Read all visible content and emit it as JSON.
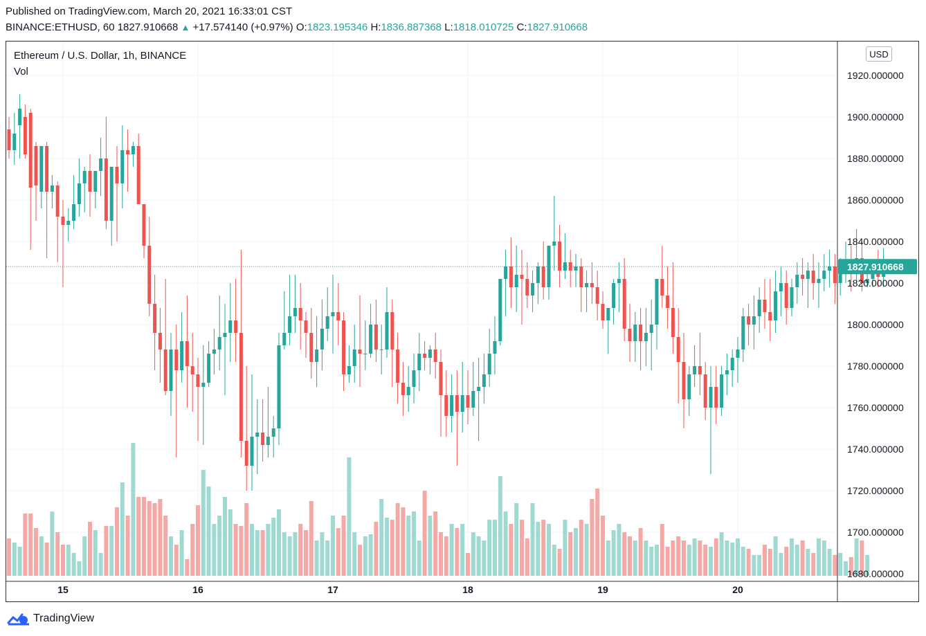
{
  "header": {
    "published": "Published on TradingView.com, March 20, 2021 16:33:01 CST",
    "symbol": "BINANCE:ETHUSD, 60",
    "last": "1827.910668",
    "change": "+17.574140 (+0.97%)",
    "o_label": "O:",
    "o_value": "1823.195346",
    "h_label": "H:",
    "h_value": "1836.887368",
    "l_label": "L:",
    "l_value": "1818.010725",
    "c_label": "C:",
    "c_value": "1827.910668"
  },
  "legend": {
    "title": "Ethereum / U.S. Dollar, 1h, BINANCE",
    "indicator": "Vol"
  },
  "unit_badge": "USD",
  "footer": {
    "brand": "TradingView"
  },
  "colors": {
    "up": "#26a69a",
    "down": "#ef5350",
    "up_vol": "#9fd9d1",
    "down_vol": "#f5a9a7",
    "price_tag": "#26a69a"
  },
  "chart_data": {
    "type": "candlestick",
    "timeframe": "1h",
    "y_axis_ticks": [
      "1920.000000",
      "1900.000000",
      "1880.000000",
      "1860.000000",
      "1840.000000",
      "1820.000000",
      "1800.000000",
      "1780.000000",
      "1760.000000",
      "1740.000000",
      "1720.000000",
      "1700.000000",
      "1680.000000"
    ],
    "y_axis_values": [
      1920,
      1900,
      1880,
      1860,
      1840,
      1820,
      1800,
      1780,
      1760,
      1740,
      1720,
      1700,
      1680
    ],
    "ylim": [
      1676,
      1930
    ],
    "x_ticks": [
      "15",
      "16",
      "17",
      "18",
      "19",
      "20"
    ],
    "x_tick_candle_index": [
      10,
      35,
      60,
      85,
      110,
      135
    ],
    "current_price": 1827.910668,
    "current_price_label": "1827.910668",
    "volume_base": 1679,
    "candles": [
      [
        1894,
        1900,
        1884,
        1880
      ],
      [
        1884,
        1902,
        1892,
        1877
      ],
      [
        1896,
        1911,
        1904,
        1880
      ],
      [
        1900,
        1906,
        1882,
        1880
      ],
      [
        1902,
        1904,
        1866,
        1836
      ],
      [
        1886,
        1888,
        1867,
        1850
      ],
      [
        1864,
        1881,
        1886,
        1856
      ],
      [
        1886,
        1888,
        1864,
        1832
      ],
      [
        1864,
        1872,
        1867,
        1856
      ],
      [
        1867,
        1869,
        1852,
        1830
      ],
      [
        1852,
        1860,
        1848,
        1818
      ],
      [
        1848,
        1856,
        1850,
        1840
      ],
      [
        1850,
        1872,
        1858,
        1846
      ],
      [
        1858,
        1880,
        1868,
        1852
      ],
      [
        1868,
        1876,
        1874,
        1854
      ],
      [
        1874,
        1882,
        1864,
        1852
      ],
      [
        1864,
        1874,
        1874,
        1856
      ],
      [
        1874,
        1890,
        1880,
        1862
      ],
      [
        1880,
        1900,
        1850,
        1846
      ],
      [
        1850,
        1876,
        1876,
        1838
      ],
      [
        1876,
        1886,
        1868,
        1840
      ],
      [
        1868,
        1896,
        1884,
        1856
      ],
      [
        1884,
        1894,
        1882,
        1864
      ],
      [
        1882,
        1888,
        1886,
        1876
      ],
      [
        1886,
        1892,
        1858,
        1858
      ],
      [
        1858,
        1858,
        1838,
        1832
      ],
      [
        1838,
        1852,
        1810,
        1804
      ],
      [
        1810,
        1824,
        1796,
        1778
      ],
      [
        1796,
        1808,
        1788,
        1772
      ],
      [
        1788,
        1822,
        1768,
        1766
      ],
      [
        1768,
        1796,
        1788,
        1756
      ],
      [
        1788,
        1800,
        1778,
        1736
      ],
      [
        1778,
        1806,
        1792,
        1772
      ],
      [
        1792,
        1814,
        1780,
        1760
      ],
      [
        1780,
        1796,
        1776,
        1758
      ],
      [
        1776,
        1784,
        1770,
        1744
      ],
      [
        1770,
        1790,
        1772,
        1742
      ],
      [
        1772,
        1792,
        1786,
        1770
      ],
      [
        1786,
        1798,
        1788,
        1776
      ],
      [
        1788,
        1814,
        1794,
        1778
      ],
      [
        1794,
        1810,
        1796,
        1766
      ],
      [
        1796,
        1820,
        1802,
        1782
      ],
      [
        1802,
        1822,
        1796,
        1782
      ],
      [
        1796,
        1836,
        1744,
        1736
      ],
      [
        1744,
        1780,
        1732,
        1720
      ],
      [
        1732,
        1776,
        1746,
        1720
      ],
      [
        1746,
        1764,
        1748,
        1728
      ],
      [
        1748,
        1764,
        1742,
        1734
      ],
      [
        1742,
        1770,
        1746,
        1736
      ],
      [
        1746,
        1756,
        1750,
        1736
      ],
      [
        1750,
        1796,
        1790,
        1742
      ],
      [
        1790,
        1816,
        1796,
        1788
      ],
      [
        1796,
        1824,
        1804,
        1790
      ],
      [
        1804,
        1824,
        1808,
        1796
      ],
      [
        1808,
        1820,
        1802,
        1788
      ],
      [
        1802,
        1806,
        1796,
        1784
      ],
      [
        1796,
        1808,
        1782,
        1774
      ],
      [
        1782,
        1804,
        1788,
        1770
      ],
      [
        1788,
        1812,
        1798,
        1778
      ],
      [
        1798,
        1818,
        1804,
        1792
      ],
      [
        1804,
        1824,
        1806,
        1786
      ],
      [
        1806,
        1820,
        1802,
        1790
      ],
      [
        1802,
        1806,
        1776,
        1768
      ],
      [
        1776,
        1790,
        1780,
        1772
      ],
      [
        1780,
        1800,
        1788,
        1772
      ],
      [
        1788,
        1814,
        1786,
        1770
      ],
      [
        1786,
        1802,
        1786,
        1778
      ],
      [
        1786,
        1810,
        1800,
        1784
      ],
      [
        1800,
        1812,
        1788,
        1782
      ],
      [
        1788,
        1800,
        1788,
        1776
      ],
      [
        1788,
        1818,
        1806,
        1784
      ],
      [
        1806,
        1812,
        1788,
        1770
      ],
      [
        1788,
        1796,
        1772,
        1762
      ],
      [
        1772,
        1782,
        1766,
        1756
      ],
      [
        1766,
        1780,
        1770,
        1758
      ],
      [
        1770,
        1786,
        1778,
        1762
      ],
      [
        1778,
        1796,
        1786,
        1768
      ],
      [
        1786,
        1792,
        1784,
        1778
      ],
      [
        1784,
        1790,
        1788,
        1776
      ],
      [
        1788,
        1796,
        1782,
        1774
      ],
      [
        1782,
        1788,
        1766,
        1746
      ],
      [
        1766,
        1778,
        1756,
        1746
      ],
      [
        1756,
        1776,
        1766,
        1748
      ],
      [
        1766,
        1778,
        1758,
        1732
      ],
      [
        1758,
        1782,
        1766,
        1748
      ],
      [
        1766,
        1778,
        1760,
        1752
      ],
      [
        1760,
        1782,
        1768,
        1756
      ],
      [
        1768,
        1784,
        1770,
        1744
      ],
      [
        1770,
        1786,
        1776,
        1762
      ],
      [
        1776,
        1798,
        1786,
        1770
      ],
      [
        1786,
        1804,
        1792,
        1776
      ],
      [
        1792,
        1816,
        1822,
        1790
      ],
      [
        1822,
        1836,
        1828,
        1804
      ],
      [
        1828,
        1842,
        1818,
        1808
      ],
      [
        1818,
        1838,
        1824,
        1806
      ],
      [
        1824,
        1836,
        1822,
        1800
      ],
      [
        1822,
        1830,
        1814,
        1808
      ],
      [
        1814,
        1826,
        1820,
        1806
      ],
      [
        1820,
        1830,
        1828,
        1810
      ],
      [
        1828,
        1840,
        1818,
        1812
      ],
      [
        1818,
        1836,
        1838,
        1812
      ],
      [
        1838,
        1862,
        1840,
        1826
      ],
      [
        1840,
        1848,
        1826,
        1818
      ],
      [
        1826,
        1844,
        1830,
        1822
      ],
      [
        1830,
        1836,
        1826,
        1818
      ],
      [
        1826,
        1834,
        1828,
        1818
      ],
      [
        1828,
        1832,
        1818,
        1806
      ],
      [
        1818,
        1826,
        1820,
        1806
      ],
      [
        1820,
        1830,
        1818,
        1810
      ],
      [
        1818,
        1826,
        1810,
        1802
      ],
      [
        1810,
        1816,
        1802,
        1798
      ],
      [
        1802,
        1808,
        1808,
        1786
      ],
      [
        1808,
        1822,
        1820,
        1800
      ],
      [
        1820,
        1830,
        1822,
        1806
      ],
      [
        1822,
        1832,
        1798,
        1792
      ],
      [
        1798,
        1810,
        1792,
        1782
      ],
      [
        1792,
        1806,
        1800,
        1782
      ],
      [
        1800,
        1808,
        1792,
        1778
      ],
      [
        1792,
        1808,
        1796,
        1780
      ],
      [
        1796,
        1812,
        1800,
        1778
      ],
      [
        1800,
        1812,
        1822,
        1788
      ],
      [
        1822,
        1838,
        1814,
        1808
      ],
      [
        1814,
        1828,
        1808,
        1798
      ],
      [
        1808,
        1830,
        1794,
        1786
      ],
      [
        1794,
        1808,
        1782,
        1762
      ],
      [
        1782,
        1796,
        1764,
        1750
      ],
      [
        1764,
        1780,
        1776,
        1756
      ],
      [
        1776,
        1790,
        1780,
        1770
      ],
      [
        1780,
        1796,
        1776,
        1766
      ],
      [
        1776,
        1782,
        1760,
        1754
      ],
      [
        1760,
        1780,
        1770,
        1728
      ],
      [
        1770,
        1780,
        1760,
        1752
      ],
      [
        1760,
        1780,
        1776,
        1756
      ],
      [
        1776,
        1786,
        1778,
        1766
      ],
      [
        1778,
        1788,
        1784,
        1770
      ],
      [
        1784,
        1794,
        1788,
        1772
      ],
      [
        1788,
        1808,
        1804,
        1782
      ],
      [
        1804,
        1810,
        1800,
        1790
      ],
      [
        1800,
        1814,
        1804,
        1788
      ],
      [
        1804,
        1818,
        1812,
        1796
      ],
      [
        1812,
        1822,
        1806,
        1798
      ],
      [
        1806,
        1822,
        1802,
        1792
      ],
      [
        1802,
        1826,
        1816,
        1796
      ],
      [
        1816,
        1828,
        1820,
        1804
      ],
      [
        1820,
        1826,
        1808,
        1800
      ],
      [
        1808,
        1822,
        1818,
        1804
      ],
      [
        1818,
        1830,
        1824,
        1810
      ],
      [
        1824,
        1832,
        1822,
        1814
      ],
      [
        1822,
        1830,
        1826,
        1808
      ],
      [
        1826,
        1834,
        1820,
        1812
      ],
      [
        1820,
        1830,
        1822,
        1808
      ],
      [
        1822,
        1834,
        1826,
        1816
      ],
      [
        1826,
        1836,
        1828,
        1818
      ],
      [
        1828,
        1834,
        1820,
        1810
      ],
      [
        1820,
        1832,
        1826,
        1814
      ],
      [
        1826,
        1840,
        1830,
        1820
      ],
      [
        1830,
        1838,
        1828,
        1816
      ],
      [
        1828,
        1846,
        1832,
        1820
      ],
      [
        1832,
        1840,
        1820,
        1816
      ],
      [
        1820,
        1830,
        1822,
        1818
      ],
      [
        1822,
        1830,
        1828,
        1818
      ],
      [
        1828,
        1836,
        1823,
        1818
      ],
      [
        1823,
        1836.887368,
        1827.910668,
        1818.010725
      ]
    ],
    "volumes": [
      1697,
      1695,
      1693,
      1709,
      1709,
      1702,
      1698,
      1695,
      1710,
      1700,
      1694,
      1694,
      1690,
      1686,
      1698,
      1705,
      1701,
      1690,
      1703,
      1703,
      1712,
      1724,
      1708,
      1743,
      1717,
      1717,
      1715,
      1714,
      1716,
      1708,
      1698,
      1694,
      1701,
      1687,
      1704,
      1713,
      1730,
      1722,
      1704,
      1708,
      1717,
      1711,
      1704,
      1703,
      1714,
      1704,
      1701,
      1701,
      1704,
      1707,
      1711,
      1700,
      1698,
      1700,
      1704,
      1701,
      1715,
      1696,
      1700,
      1696,
      1708,
      1702,
      1708,
      1736,
      1700,
      1694,
      1698,
      1699,
      1705,
      1716,
      1707,
      1706,
      1714,
      1712,
      1708,
      1710,
      1696,
      1720,
      1708,
      1710,
      1700,
      1698,
      1704,
      1702,
      1704,
      1690,
      1700,
      1698,
      1696,
      1706,
      1706,
      1727,
      1710,
      1704,
      1714,
      1706,
      1697,
      1714,
      1705,
      1706,
      1704,
      1694,
      1692,
      1706,
      1700,
      1702,
      1706,
      1704,
      1716,
      1721,
      1708,
      1696,
      1701,
      1704,
      1700,
      1698,
      1696,
      1702,
      1696,
      1693,
      1694,
      1704,
      1693,
      1696,
      1698,
      1696,
      1694,
      1697,
      1696,
      1694,
      1693,
      1697,
      1700,
      1696,
      1695,
      1697,
      1693,
      1692,
      1689,
      1689,
      1694,
      1692,
      1698,
      1690,
      1693,
      1697,
      1694,
      1696,
      1692,
      1690,
      1697,
      1696,
      1692,
      1689,
      1690,
      1686,
      1688,
      1697,
      1696,
      1689
    ]
  }
}
